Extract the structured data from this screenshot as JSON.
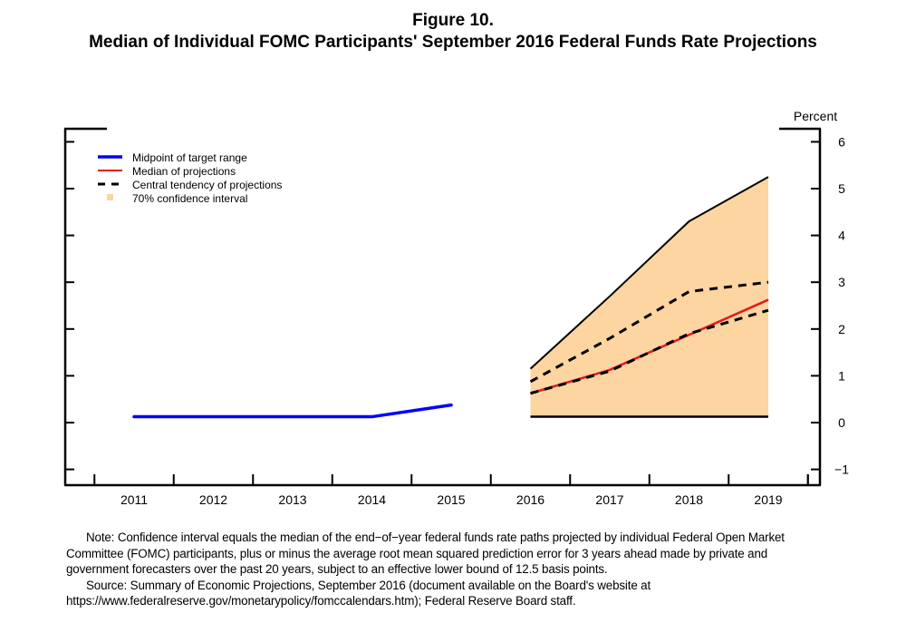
{
  "figure_label": "Figure 10.",
  "chart_data": {
    "type": "line",
    "title": "Median of Individual FOMC Participants' September 2016 Federal Funds Rate Projections",
    "ylabel": "Percent",
    "ylim": [
      -1.3,
      6.3
    ],
    "yticks": [
      -1,
      0,
      1,
      2,
      3,
      4,
      5,
      6
    ],
    "ytick_labels": [
      "−1",
      "0",
      "1",
      "2",
      "3",
      "4",
      "5",
      "6"
    ],
    "xlim": [
      2010.5,
      2019.65
    ],
    "xticks": [
      2011,
      2012,
      2013,
      2014,
      2015,
      2016,
      2017,
      2018,
      2019
    ],
    "xtick_labels": [
      "2011",
      "2012",
      "2013",
      "2014",
      "2015",
      "2016",
      "2017",
      "2018",
      "2019"
    ],
    "legend_position": "top-left",
    "series": [
      {
        "name": "Midpoint of target range",
        "type": "line",
        "color": "#0000ff",
        "x": [
          2011,
          2012,
          2013,
          2014,
          2015
        ],
        "y": [
          0.125,
          0.125,
          0.125,
          0.125,
          0.375
        ]
      },
      {
        "name": "Median of projections",
        "type": "line",
        "color": "#e31a1c",
        "x": [
          2016,
          2017,
          2018,
          2019
        ],
        "y": [
          0.625,
          1.125,
          1.875,
          2.625
        ]
      },
      {
        "name": "Central tendency of projections",
        "type": "dashed",
        "color": "#000000",
        "x": [
          2016,
          2017,
          2018,
          2019
        ],
        "upper": [
          0.875,
          1.8,
          2.8,
          3.0
        ],
        "lower": [
          0.625,
          1.1,
          1.9,
          2.4
        ]
      },
      {
        "name": "70% confidence interval",
        "type": "area",
        "color": "#fcd5a0",
        "x": [
          2016,
          2017,
          2018,
          2019
        ],
        "upper": [
          1.15,
          2.7,
          4.3,
          5.25
        ],
        "lower": [
          0.125,
          0.125,
          0.125,
          0.125
        ]
      }
    ]
  },
  "note": {
    "lines": [
      "Note:  Confidence interval equals the median of the end−of−year federal funds rate paths projected by individual Federal Open Market",
      "Committee (FOMC) participants, plus or minus the average root mean squared prediction error for 3 years ahead made by private and",
      "government forecasters over the past 20 years, subject to an effective lower bound of 12.5 basis points.",
      "Source:  Summary of Economic Projections, September 2016 (document available on the Board's website at",
      "https://www.federalreserve.gov/monetarypolicy/fomccalendars.htm); Federal Reserve Board staff."
    ]
  }
}
